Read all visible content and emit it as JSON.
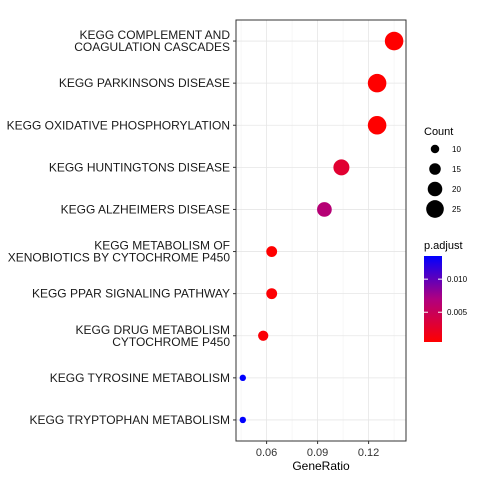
{
  "chart_data": {
    "type": "scatter",
    "xlabel": "GeneRatio",
    "ylabel": "",
    "xlim": [
      0.042,
      0.142
    ],
    "xticks": [
      0.06,
      0.09,
      0.12
    ],
    "xtick_labels": [
      "0.06",
      "0.09",
      "0.12"
    ],
    "grid": true,
    "points": [
      {
        "term": [
          "KEGG COMPLEMENT AND",
          "COAGULATION CASCADES"
        ],
        "x": 0.135,
        "count": 25,
        "p_adjust": 0.0005
      },
      {
        "term": [
          "KEGG PARKINSONS DISEASE"
        ],
        "x": 0.125,
        "count": 25,
        "p_adjust": 0.0005
      },
      {
        "term": [
          "KEGG OXIDATIVE PHOSPHORYLATION"
        ],
        "x": 0.125,
        "count": 25,
        "p_adjust": 0.0005
      },
      {
        "term": [
          "KEGG HUNTINGTONS DISEASE"
        ],
        "x": 0.104,
        "count": 21,
        "p_adjust": 0.003
      },
      {
        "term": [
          "KEGG ALZHEIMERS DISEASE"
        ],
        "x": 0.094,
        "count": 19,
        "p_adjust": 0.0065
      },
      {
        "term": [
          "KEGG METABOLISM OF",
          "XENOBIOTICS BY CYTOCHROME P450"
        ],
        "x": 0.063,
        "count": 13,
        "p_adjust": 0.0005
      },
      {
        "term": [
          "KEGG PPAR SIGNALING PATHWAY"
        ],
        "x": 0.063,
        "count": 13,
        "p_adjust": 0.0007
      },
      {
        "term": [
          "KEGG DRUG METABOLISM",
          "CYTOCHROME P450"
        ],
        "x": 0.058,
        "count": 12,
        "p_adjust": 0.0008
      },
      {
        "term": [
          "KEGG TYROSINE METABOLISM"
        ],
        "x": 0.046,
        "count": 6,
        "p_adjust": 0.0135
      },
      {
        "term": [
          "KEGG TRYPTOPHAN METABOLISM"
        ],
        "x": 0.046,
        "count": 6,
        "p_adjust": 0.0135
      }
    ],
    "size_legend": {
      "title": "Count",
      "values": [
        10,
        15,
        20,
        25
      ],
      "labels": [
        "10",
        "15",
        "20",
        "25"
      ]
    },
    "color_legend": {
      "title": "p.adjust",
      "range": [
        0.0005,
        0.0135
      ],
      "ticks": [
        0.005,
        0.01
      ],
      "tick_labels": [
        "0.005",
        "0.010"
      ],
      "low_color": "#ff0000",
      "high_color": "#0000ff"
    }
  }
}
